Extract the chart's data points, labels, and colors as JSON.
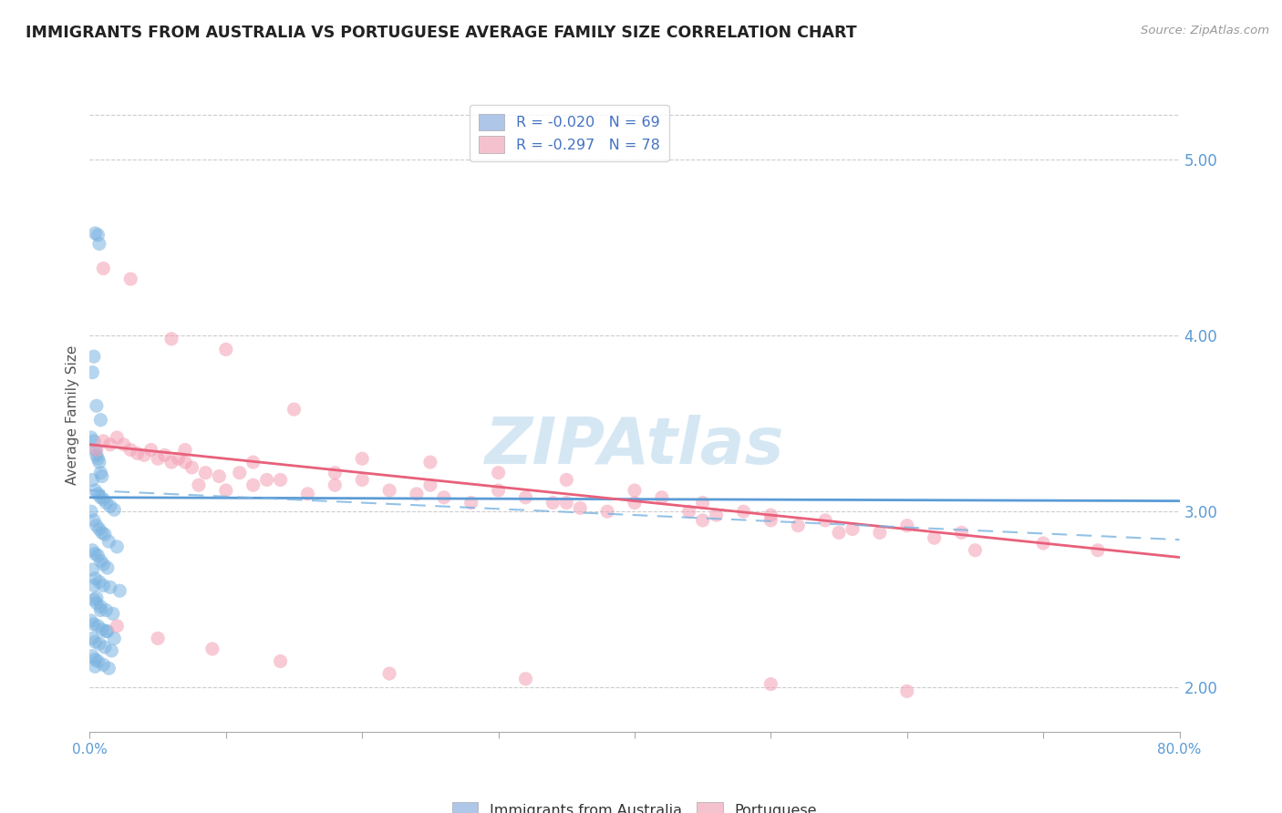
{
  "title": "IMMIGRANTS FROM AUSTRALIA VS PORTUGUESE AVERAGE FAMILY SIZE CORRELATION CHART",
  "source": "Source: ZipAtlas.com",
  "ylabel": "Average Family Size",
  "ymin": 1.75,
  "ymax": 5.35,
  "xmin": 0.0,
  "xmax": 80.0,
  "yticks": [
    2.0,
    3.0,
    4.0,
    5.0
  ],
  "blue_color": "#5b9bd5",
  "pink_color": "#e8607a",
  "blue_scatter_color": "#7ab3e0",
  "pink_scatter_color": "#f4a0b5",
  "blue_fill": "#aec6e8",
  "pink_fill": "#f4c2ce",
  "watermark": "ZIPAtlas",
  "watermark_color": "#c5ddf0",
  "legend_label_blue": "R = -0.020   N = 69",
  "legend_label_pink": "R = -0.297   N = 78",
  "legend_text_color": "#4472c4",
  "bottom_label_blue": "Immigrants from Australia",
  "bottom_label_pink": "Portuguese",
  "blue_trend": [
    3.08,
    3.06
  ],
  "pink_trend": [
    3.38,
    2.74
  ],
  "dashed_trend": [
    3.12,
    2.84
  ],
  "blue_scatter_x": [
    0.4,
    0.6,
    0.7,
    0.3,
    0.2,
    0.5,
    0.8,
    0.1,
    0.3,
    0.4,
    0.5,
    0.6,
    0.7,
    0.8,
    0.9,
    0.2,
    0.4,
    0.6,
    0.8,
    1.0,
    1.2,
    1.5,
    1.8,
    0.1,
    0.3,
    0.5,
    0.7,
    0.9,
    1.1,
    1.4,
    2.0,
    0.2,
    0.4,
    0.6,
    0.8,
    1.0,
    1.3,
    0.2,
    0.4,
    0.7,
    1.0,
    1.5,
    2.2,
    0.3,
    0.5,
    0.8,
    1.2,
    1.7,
    0.1,
    0.3,
    0.6,
    0.9,
    1.3,
    0.2,
    0.4,
    0.7,
    1.1,
    1.6,
    0.2,
    0.4,
    0.6,
    1.0,
    1.4,
    0.3,
    0.5,
    0.8,
    1.2,
    1.8,
    0.4
  ],
  "blue_scatter_y": [
    4.58,
    4.57,
    4.52,
    3.88,
    3.79,
    3.6,
    3.52,
    3.42,
    3.4,
    3.35,
    3.32,
    3.3,
    3.28,
    3.22,
    3.2,
    3.18,
    3.12,
    3.1,
    3.08,
    3.07,
    3.05,
    3.03,
    3.01,
    3.0,
    2.95,
    2.92,
    2.9,
    2.88,
    2.87,
    2.83,
    2.8,
    2.78,
    2.76,
    2.75,
    2.72,
    2.7,
    2.68,
    2.67,
    2.62,
    2.6,
    2.58,
    2.57,
    2.55,
    2.5,
    2.48,
    2.46,
    2.44,
    2.42,
    2.38,
    2.36,
    2.35,
    2.33,
    2.32,
    2.28,
    2.26,
    2.25,
    2.23,
    2.21,
    2.18,
    2.16,
    2.15,
    2.13,
    2.11,
    2.58,
    2.51,
    2.44,
    2.32,
    2.28,
    2.12
  ],
  "pink_scatter_x": [
    0.5,
    1.0,
    1.5,
    2.0,
    2.5,
    3.0,
    3.5,
    4.0,
    4.5,
    5.0,
    5.5,
    6.0,
    6.5,
    7.0,
    7.5,
    8.5,
    9.5,
    11.0,
    13.0,
    8.0,
    10.0,
    12.0,
    14.0,
    16.0,
    18.0,
    20.0,
    22.0,
    24.0,
    26.0,
    28.0,
    30.0,
    32.0,
    34.0,
    36.0,
    38.0,
    40.0,
    42.0,
    44.0,
    46.0,
    48.0,
    50.0,
    52.0,
    54.0,
    56.0,
    58.0,
    60.0,
    62.0,
    64.0,
    70.0,
    74.0,
    1.0,
    3.0,
    6.0,
    10.0,
    15.0,
    20.0,
    25.0,
    30.0,
    35.0,
    40.0,
    45.0,
    50.0,
    7.0,
    12.0,
    18.0,
    25.0,
    35.0,
    45.0,
    55.0,
    65.0,
    2.0,
    5.0,
    9.0,
    14.0,
    22.0,
    32.0,
    50.0,
    60.0
  ],
  "pink_scatter_y": [
    3.35,
    3.4,
    3.38,
    3.42,
    3.38,
    3.35,
    3.33,
    3.32,
    3.35,
    3.3,
    3.32,
    3.28,
    3.3,
    3.28,
    3.25,
    3.22,
    3.2,
    3.22,
    3.18,
    3.15,
    3.12,
    3.15,
    3.18,
    3.1,
    3.15,
    3.18,
    3.12,
    3.1,
    3.08,
    3.05,
    3.12,
    3.08,
    3.05,
    3.02,
    3.0,
    3.05,
    3.08,
    3.0,
    2.98,
    3.0,
    2.95,
    2.92,
    2.95,
    2.9,
    2.88,
    2.92,
    2.85,
    2.88,
    2.82,
    2.78,
    4.38,
    4.32,
    3.98,
    3.92,
    3.58,
    3.3,
    3.28,
    3.22,
    3.18,
    3.12,
    3.05,
    2.98,
    3.35,
    3.28,
    3.22,
    3.15,
    3.05,
    2.95,
    2.88,
    2.78,
    2.35,
    2.28,
    2.22,
    2.15,
    2.08,
    2.05,
    2.02,
    1.98
  ]
}
